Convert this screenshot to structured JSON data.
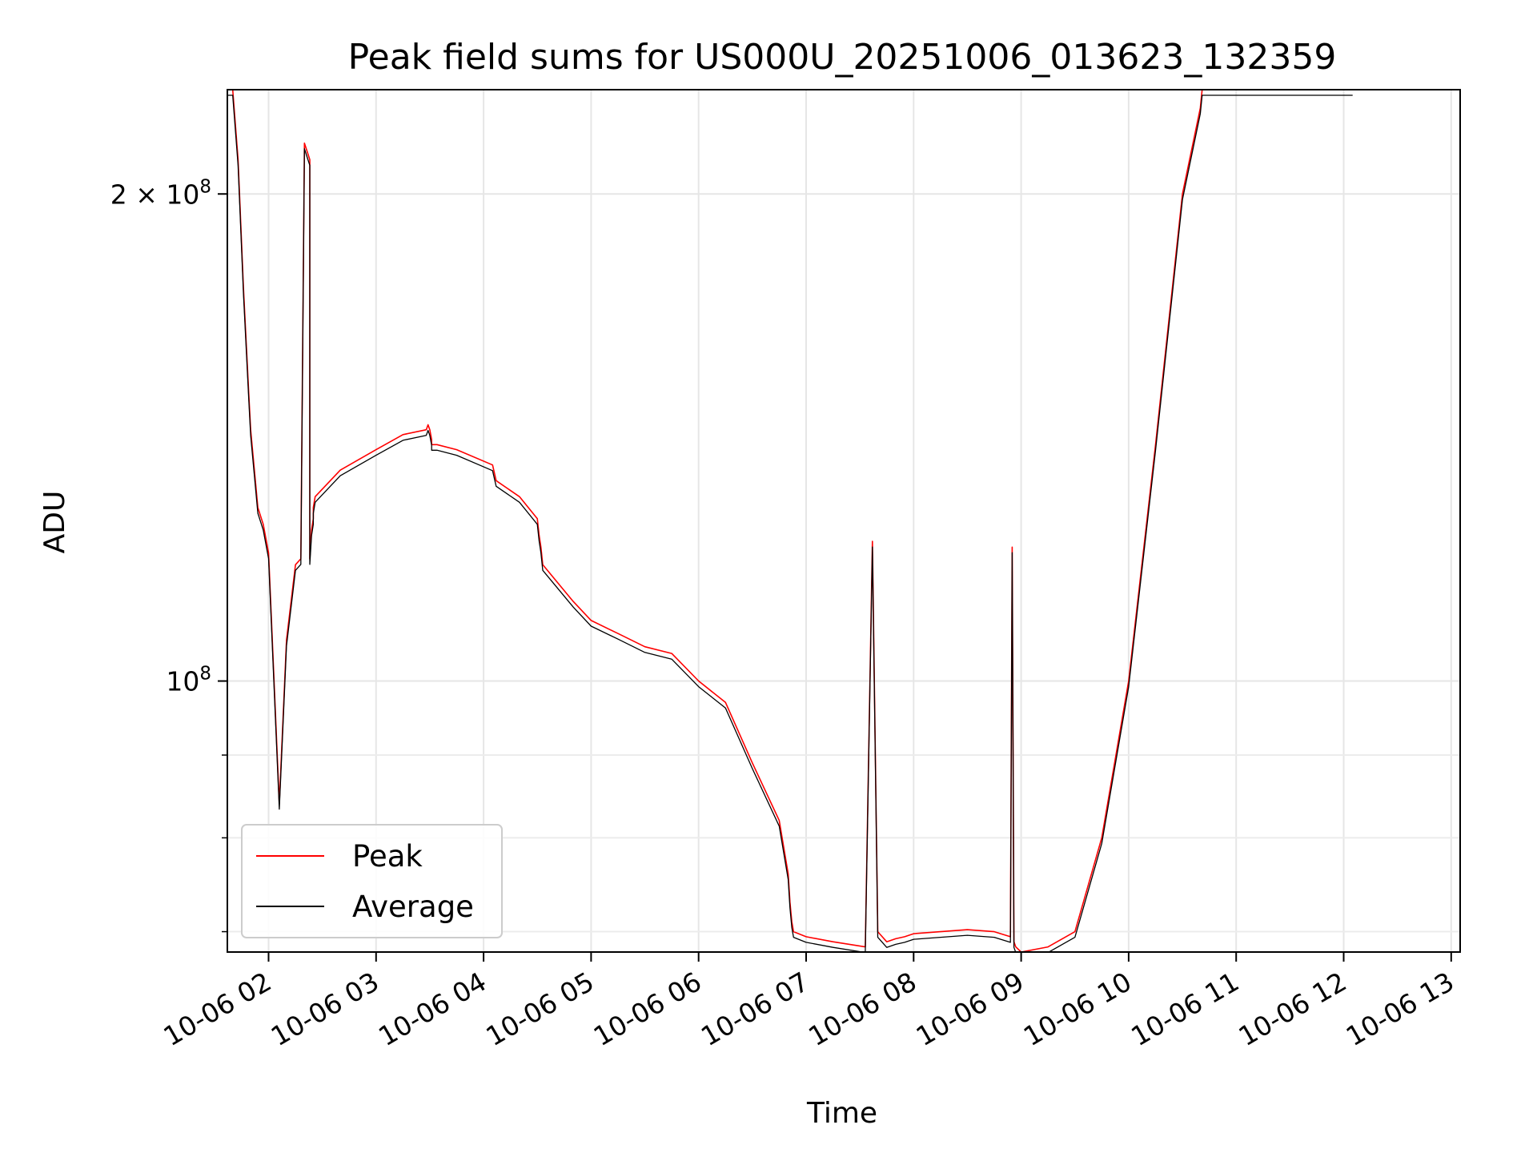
{
  "chart_data": {
    "type": "line",
    "title": "Peak field sums for US000U_20251006_013623_132359",
    "xlabel": "Time",
    "ylabel": "ADU",
    "x_scale": "time",
    "y_scale": "log",
    "xlim": [
      "10-06 01:37",
      "10-06 13:05"
    ],
    "ylim": [
      68000000,
      232000000
    ],
    "x_ticks": [
      "10-06 02",
      "10-06 03",
      "10-06 04",
      "10-06 05",
      "10-06 06",
      "10-06 07",
      "10-06 08",
      "10-06 09",
      "10-06 10",
      "10-06 11",
      "10-06 12",
      "10-06 13"
    ],
    "x_tick_values": [
      "10-06 02:00",
      "10-06 03:00",
      "10-06 04:00",
      "10-06 05:00",
      "10-06 06:00",
      "10-06 07:00",
      "10-06 08:00",
      "10-06 09:00",
      "10-06 10:00",
      "10-06 11:00",
      "10-06 12:00",
      "10-06 13:00"
    ],
    "y_ticks": [
      {
        "value": 100000000,
        "mantissa": "",
        "exp": "8"
      },
      {
        "value": 200000000,
        "mantissa": "2 × ",
        "exp": "8"
      }
    ],
    "y_minor_ticks": [
      70000000,
      80000000,
      90000000
    ],
    "grid": true,
    "legend_position": "lower-left",
    "series": [
      {
        "name": "Peak",
        "color": "#ff0000",
        "x": [
          "10-06 01:37",
          "10-06 01:40",
          "10-06 01:43",
          "10-06 01:46",
          "10-06 01:49",
          "10-06 01:50",
          "10-06 01:54",
          "10-06 01:57",
          "10-06 02:00",
          "10-06 02:06",
          "10-06 02:10",
          "10-06 02:15",
          "10-06 02:18",
          "10-06 02:20",
          "10-06 02:23",
          "10-06 02:23",
          "10-06 02:24",
          "10-06 02:25",
          "10-06 02:25",
          "10-06 02:26",
          "10-06 02:40",
          "10-06 03:00",
          "10-06 03:15",
          "10-06 03:28",
          "10-06 03:28",
          "10-06 03:29",
          "10-06 03:30",
          "10-06 03:31",
          "10-06 03:31",
          "10-06 03:34",
          "10-06 03:45",
          "10-06 04:05",
          "10-06 04:07",
          "10-06 04:20",
          "10-06 04:30",
          "10-06 04:31",
          "10-06 04:32",
          "10-06 04:33",
          "10-06 04:50",
          "10-06 05:00",
          "10-06 05:15",
          "10-06 05:30",
          "10-06 05:45",
          "10-06 06:00",
          "10-06 06:15",
          "10-06 06:30",
          "10-06 06:45",
          "10-06 06:50",
          "10-06 06:51",
          "10-06 06:52",
          "10-06 06:53",
          "10-06 07:00",
          "10-06 07:15",
          "10-06 07:33",
          "10-06 07:37",
          "10-06 07:40",
          "10-06 07:45",
          "10-06 07:50",
          "10-06 07:55",
          "10-06 08:00",
          "10-06 08:15",
          "10-06 08:30",
          "10-06 08:45",
          "10-06 08:54",
          "10-06 08:55",
          "10-06 08:56",
          "10-06 08:57",
          "10-06 09:00",
          "10-06 09:15",
          "10-06 09:30",
          "10-06 09:45",
          "10-06 10:00",
          "10-06 10:15",
          "10-06 10:30",
          "10-06 10:40",
          "10-06 10:41",
          "10-06 10:42",
          "10-06 10:43",
          "10-06 10:50",
          "10-06 10:53",
          "10-06 10:54",
          "10-06 10:55",
          "10-06 11:05",
          "10-06 11:15",
          "10-06 11:25",
          "10-06 11:30",
          "10-06 11:35",
          "10-06 11:45",
          "10-06 11:55",
          "10-06 12:00",
          "10-06 12:05"
        ],
        "y": [
          232000000,
          232000000,
          210000000,
          175000000,
          150000000,
          143000000,
          128000000,
          125000000,
          120000000,
          84000000,
          106000000,
          118000000,
          119000000,
          215000000,
          210000000,
          119000000,
          124000000,
          126000000,
          128000000,
          130000000,
          135000000,
          139000000,
          142000000,
          143000000,
          143000000,
          144000000,
          143000000,
          141000000,
          140000000,
          140000000,
          139000000,
          136000000,
          133000000,
          130000000,
          126000000,
          123000000,
          121000000,
          118000000,
          112000000,
          109000000,
          107000000,
          105000000,
          104000000,
          100000000,
          97000000,
          89000000,
          82000000,
          76000000,
          73000000,
          71000000,
          70000000,
          69500000,
          69000000,
          68500000,
          122000000,
          70000000,
          69000000,
          69300000,
          69500000,
          69800000,
          70000000,
          70200000,
          70000000,
          69500000,
          121000000,
          69000000,
          68500000,
          68000000,
          68500000,
          70000000,
          80000000,
          100000000,
          140000000,
          200000000,
          226000000,
          232000000,
          232000000,
          232000000,
          232000000,
          232000000,
          232000000,
          232000000,
          232000000,
          232000000,
          232000000,
          232000000,
          232000000,
          232000000,
          232000000,
          232000000,
          232000000
        ]
      },
      {
        "name": "Average",
        "color": "#000000",
        "x": [],
        "y": []
      }
    ]
  }
}
